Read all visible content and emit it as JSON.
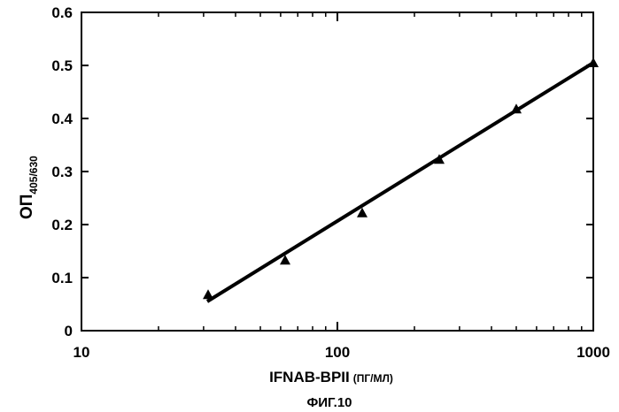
{
  "chart_data": {
    "type": "scatter",
    "x_scale": "log",
    "xlim": [
      10,
      1000
    ],
    "ylim": [
      0,
      0.6
    ],
    "x_ticks": [
      10,
      100,
      1000
    ],
    "y_ticks": [
      0,
      0.1,
      0.2,
      0.3,
      0.4,
      0.5,
      0.6
    ],
    "x_tick_labels": [
      "10",
      "100",
      "1000"
    ],
    "y_tick_labels": [
      "0",
      "0.1",
      "0.2",
      "0.3",
      "0.4",
      "0.5",
      "0.6"
    ],
    "xlabel": "IFNAB-BPII",
    "xlabel_unit": "(ПГ/МЛ)",
    "ylabel": "ОП",
    "ylabel_subscript": "405/630",
    "grid": false,
    "series": [
      {
        "marker": "triangle",
        "x": [
          31.25,
          62.5,
          125,
          250,
          500,
          1000
        ],
        "y": [
          0.068,
          0.133,
          0.222,
          0.323,
          0.418,
          0.505
        ]
      }
    ],
    "fit_line": {
      "x": [
        31,
        1000
      ],
      "y": [
        0.055,
        0.505
      ]
    },
    "caption": "ФИГ.10"
  }
}
